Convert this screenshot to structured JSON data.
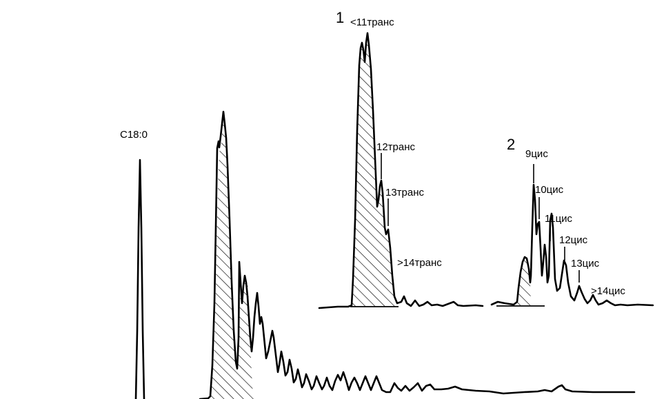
{
  "chart_data": {
    "type": "line",
    "title": "",
    "xlabel": "",
    "ylabel": "",
    "panels": [
      {
        "name": "main",
        "peak_labels": [
          {
            "id": "c18",
            "text": "C18:0"
          }
        ]
      },
      {
        "name": "inset-1",
        "number": "1",
        "peak_labels": [
          {
            "id": "t11",
            "text": "<11транс"
          },
          {
            "id": "t12",
            "text": "12транс"
          },
          {
            "id": "t13",
            "text": "13транс"
          },
          {
            "id": "t14",
            "text": ">14транс"
          }
        ]
      },
      {
        "name": "inset-2",
        "number": "2",
        "peak_labels": [
          {
            "id": "c9",
            "text": "9цис"
          },
          {
            "id": "c10",
            "text": "10цис"
          },
          {
            "id": "c11",
            "text": "11цис"
          },
          {
            "id": "c12",
            "text": "12цис"
          },
          {
            "id": "c13",
            "text": "13цис"
          },
          {
            "id": "c14",
            "text": ">14цис"
          }
        ]
      }
    ],
    "shaded_region": "hatched (trans isomers)",
    "grid": false,
    "legend": "none"
  },
  "colors": {
    "line": "#000000",
    "background": "#ffffff"
  }
}
